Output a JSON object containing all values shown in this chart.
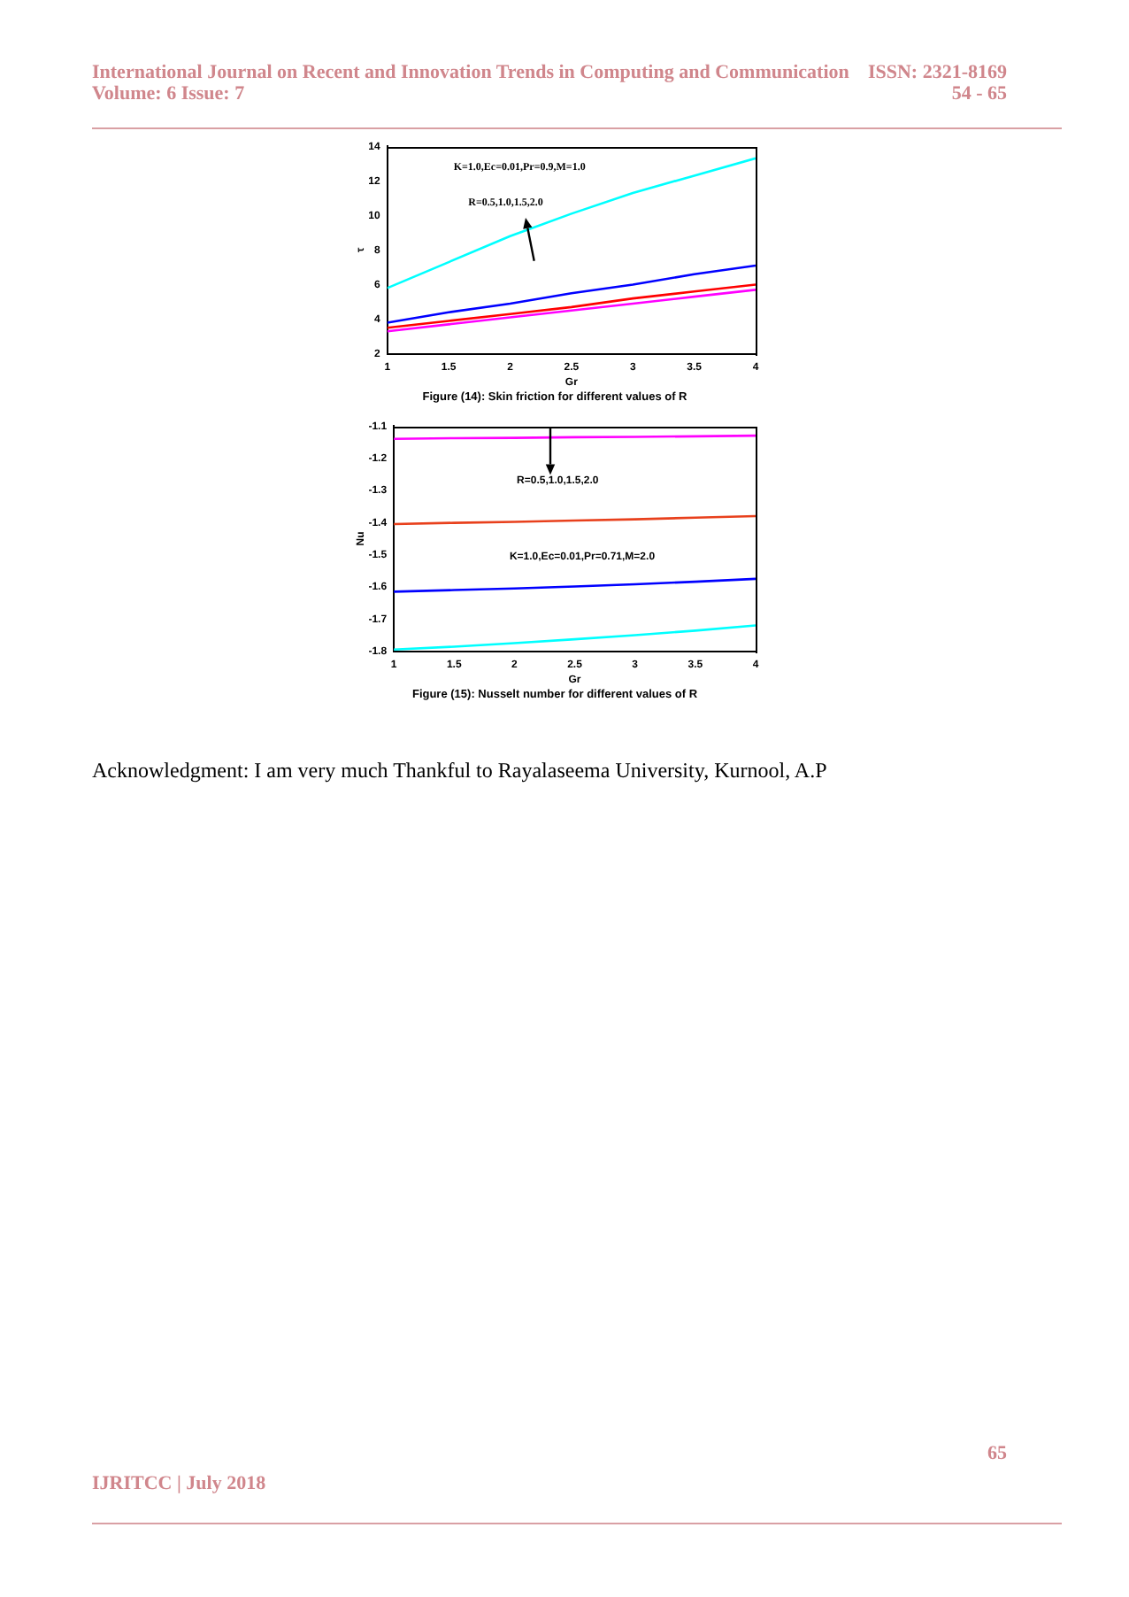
{
  "chart_data": [
    {
      "type": "line",
      "title": "Figure (14): Skin friction for different values of R",
      "xlabel": "Gr",
      "ylabel": "τ",
      "x": [
        1,
        1.5,
        2,
        2.5,
        3,
        3.5,
        4
      ],
      "series": [
        {
          "color": "#00ffff",
          "values": [
            5.8,
            7.3,
            8.8,
            10.1,
            11.3,
            12.3,
            13.3
          ]
        },
        {
          "color": "#0000ff",
          "values": [
            3.8,
            4.4,
            4.9,
            5.5,
            6.0,
            6.6,
            7.1
          ]
        },
        {
          "color": "#ff0000",
          "values": [
            3.5,
            3.9,
            4.3,
            4.7,
            5.2,
            5.6,
            6.0
          ]
        },
        {
          "color": "#ff00ff",
          "values": [
            3.3,
            3.7,
            4.1,
            4.5,
            4.9,
            5.3,
            5.7
          ]
        }
      ],
      "xlim": [
        1,
        4
      ],
      "xticks": [
        1,
        1.5,
        2,
        2.5,
        3,
        3.5,
        4
      ],
      "ylim": [
        2,
        14
      ],
      "yticks": [
        2,
        4,
        6,
        8,
        10,
        12,
        14
      ],
      "grid": false,
      "legend": false,
      "marker": "none",
      "line_style": "solid",
      "annotations": [
        "International Journal on Recent and Innovation Trends in Computing and Communication",
        "Volume: 6 Issue: 7",
        "ISSN: 2321-8169",
        "54 - 65",
        "K=1.0,Ec=0.01,Pr=0.9,M=1.0",
        "R=0.5,1.0,1.5,2.0"
      ]
    },
    {
      "type": "line",
      "title": "Figure (15): Nusselt number for different values of R",
      "xlabel": "Gr",
      "ylabel": "Nu",
      "x": [
        1,
        1.5,
        2,
        2.5,
        3,
        3.5,
        4
      ],
      "series": [
        {
          "color": "#ff00ff",
          "values": [
            -1.14,
            -1.138,
            -1.137,
            -1.135,
            -1.134,
            -1.132,
            -1.13
          ]
        },
        {
          "color": "#e8401c",
          "values": [
            -1.405,
            -1.401,
            -1.398,
            -1.394,
            -1.39,
            -1.385,
            -1.38
          ]
        },
        {
          "color": "#0000ff",
          "values": [
            -1.615,
            -1.61,
            -1.605,
            -1.599,
            -1.592,
            -1.584,
            -1.575
          ]
        },
        {
          "color": "#00ffff",
          "values": [
            -1.795,
            -1.786,
            -1.775,
            -1.763,
            -1.75,
            -1.736,
            -1.72
          ]
        }
      ],
      "xlim": [
        1,
        4
      ],
      "xticks": [
        1,
        1.5,
        2,
        2.5,
        3,
        3.5,
        4
      ],
      "ylim": [
        -1.8,
        -1.1
      ],
      "yticks": [
        -1.8,
        -1.7,
        -1.6,
        -1.5,
        -1.4,
        -1.3,
        -1.2,
        -1.1
      ],
      "grid": false,
      "legend": false,
      "marker": "none",
      "line_style": "solid",
      "annotations": [
        "R=0.5,1.0,1.5,2.0",
        "K=1.0,Ec=0.01,Pr=0.71,M=2.0",
        "Acknowledgment: I am very much Thankful to Rayalaseema University, Kurnool, A.P",
        "65",
        "IJRITCC | July 2018"
      ]
    }
  ]
}
